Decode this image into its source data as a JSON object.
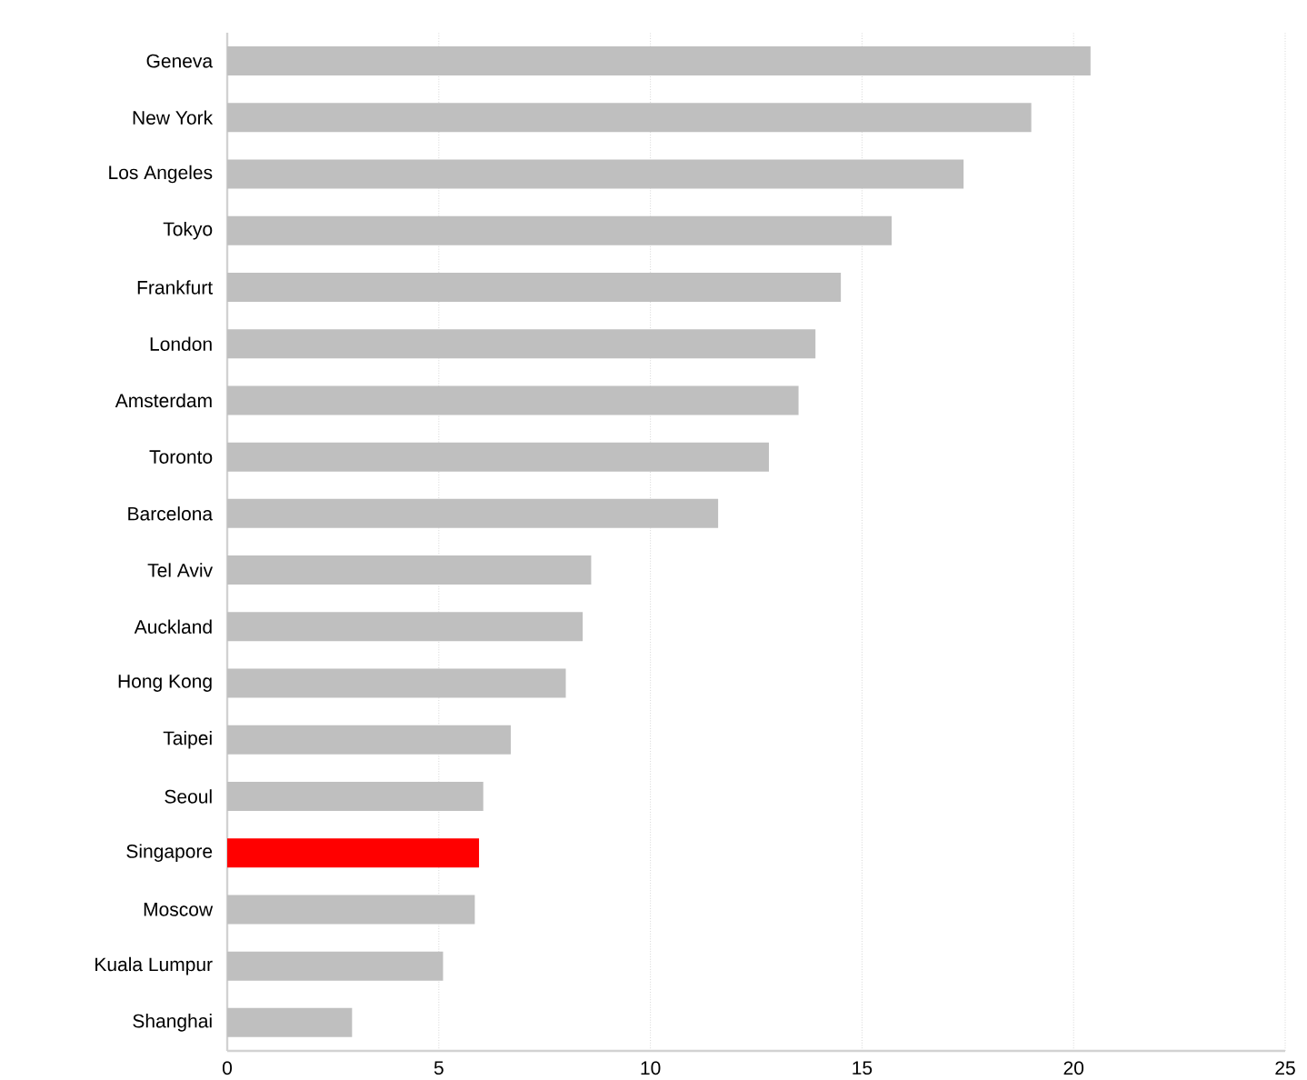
{
  "chart_data": {
    "type": "bar",
    "orientation": "horizontal",
    "categories": [
      "Geneva",
      "New York",
      "Los Angeles",
      "Tokyo",
      "Frankfurt",
      "London",
      "Amsterdam",
      "Toronto",
      "Barcelona",
      "Tel Aviv",
      "Auckland",
      "Hong Kong",
      "Taipei",
      "Seoul",
      "Singapore",
      "Moscow",
      "Kuala Lumpur",
      "Shanghai"
    ],
    "values": [
      20.4,
      19.0,
      17.4,
      15.7,
      14.5,
      13.9,
      13.5,
      12.8,
      11.6,
      8.6,
      8.4,
      8.0,
      6.7,
      6.05,
      5.95,
      5.85,
      5.1,
      2.95
    ],
    "colors": [
      "#bfbfbf",
      "#bfbfbf",
      "#bfbfbf",
      "#bfbfbf",
      "#bfbfbf",
      "#bfbfbf",
      "#bfbfbf",
      "#bfbfbf",
      "#bfbfbf",
      "#bfbfbf",
      "#bfbfbf",
      "#bfbfbf",
      "#bfbfbf",
      "#bfbfbf",
      "#ff0000",
      "#bfbfbf",
      "#bfbfbf",
      "#bfbfbf"
    ],
    "xlim": [
      0,
      25
    ],
    "xticks": [
      0,
      5,
      10,
      15,
      20,
      25
    ],
    "grid": "x"
  }
}
